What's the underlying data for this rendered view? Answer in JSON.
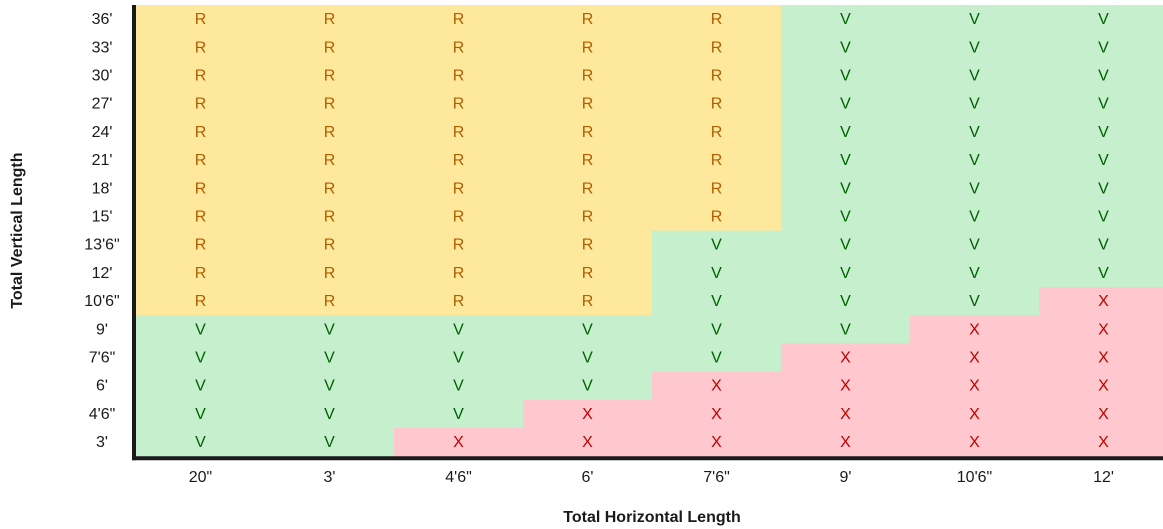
{
  "chart_data": {
    "type": "heatmap",
    "xlabel": "Total Horizontal Length",
    "ylabel": "Total Vertical Length",
    "x_categories": [
      "20\"",
      "3'",
      "4'6\"",
      "6'",
      "7'6\"",
      "9'",
      "10'6\"",
      "12'"
    ],
    "y_categories": [
      "36'",
      "33'",
      "30'",
      "27'",
      "24'",
      "21'",
      "18'",
      "15'",
      "13'6\"",
      "12'",
      "10'6\"",
      "9'",
      "7'6\"",
      "6'",
      "4'6\"",
      "3'"
    ],
    "rows": [
      [
        "R",
        "R",
        "R",
        "R",
        "R",
        "V",
        "V",
        "V"
      ],
      [
        "R",
        "R",
        "R",
        "R",
        "R",
        "V",
        "V",
        "V"
      ],
      [
        "R",
        "R",
        "R",
        "R",
        "R",
        "V",
        "V",
        "V"
      ],
      [
        "R",
        "R",
        "R",
        "R",
        "R",
        "V",
        "V",
        "V"
      ],
      [
        "R",
        "R",
        "R",
        "R",
        "R",
        "V",
        "V",
        "V"
      ],
      [
        "R",
        "R",
        "R",
        "R",
        "R",
        "V",
        "V",
        "V"
      ],
      [
        "R",
        "R",
        "R",
        "R",
        "R",
        "V",
        "V",
        "V"
      ],
      [
        "R",
        "R",
        "R",
        "R",
        "R",
        "V",
        "V",
        "V"
      ],
      [
        "R",
        "R",
        "R",
        "R",
        "V",
        "V",
        "V",
        "V"
      ],
      [
        "R",
        "R",
        "R",
        "R",
        "V",
        "V",
        "V",
        "V"
      ],
      [
        "R",
        "R",
        "R",
        "R",
        "V",
        "V",
        "V",
        "X"
      ],
      [
        "V",
        "V",
        "V",
        "V",
        "V",
        "V",
        "X",
        "X"
      ],
      [
        "V",
        "V",
        "V",
        "V",
        "V",
        "X",
        "X",
        "X"
      ],
      [
        "V",
        "V",
        "V",
        "V",
        "X",
        "X",
        "X",
        "X"
      ],
      [
        "V",
        "V",
        "V",
        "X",
        "X",
        "X",
        "X",
        "X"
      ],
      [
        "V",
        "V",
        "X",
        "X",
        "X",
        "X",
        "X",
        "X"
      ]
    ],
    "legend": null,
    "colors": {
      "R": {
        "fill": "#fde89b",
        "text": "#b35c00"
      },
      "V": {
        "fill": "#c6efce",
        "text": "#006100"
      },
      "X": {
        "fill": "#ffc7ce",
        "text": "#c00000"
      },
      "axis": "#1a1a1a"
    }
  }
}
